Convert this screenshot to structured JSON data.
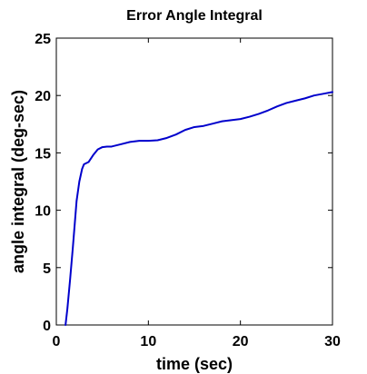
{
  "chart_data": {
    "type": "line",
    "title": "Error Angle Integral",
    "xlabel": "time (sec)",
    "ylabel": "angle integral (deg-sec)",
    "xlim": [
      0,
      30
    ],
    "ylim": [
      0,
      25
    ],
    "xticks": [
      0,
      10,
      20,
      30
    ],
    "yticks": [
      0,
      5,
      10,
      15,
      20,
      25
    ],
    "grid": false,
    "legend": "none",
    "series": [
      {
        "color": "#0000cc",
        "x": [
          1.0,
          1.2,
          1.5,
          1.8,
          2.0,
          2.2,
          2.5,
          2.8,
          3.0,
          3.5,
          4.0,
          4.5,
          5.0,
          5.5,
          6.0,
          6.5,
          7.0,
          8.0,
          9.0,
          10.0,
          11.0,
          12.0,
          13.0,
          14.0,
          15.0,
          16.0,
          17.0,
          18.0,
          19.0,
          20.0,
          21.0,
          22.0,
          23.0,
          24.0,
          25.0,
          26.0,
          27.0,
          28.0,
          29.0,
          30.0
        ],
        "y": [
          0.0,
          1.4,
          4.0,
          6.8,
          8.8,
          10.8,
          12.5,
          13.6,
          14.0,
          14.2,
          14.8,
          15.3,
          15.5,
          15.55,
          15.55,
          15.65,
          15.75,
          15.95,
          16.05,
          16.05,
          16.1,
          16.3,
          16.6,
          17.0,
          17.25,
          17.35,
          17.55,
          17.75,
          17.85,
          17.95,
          18.15,
          18.4,
          18.7,
          19.05,
          19.35,
          19.55,
          19.75,
          20.0,
          20.15,
          20.3
        ]
      }
    ]
  }
}
